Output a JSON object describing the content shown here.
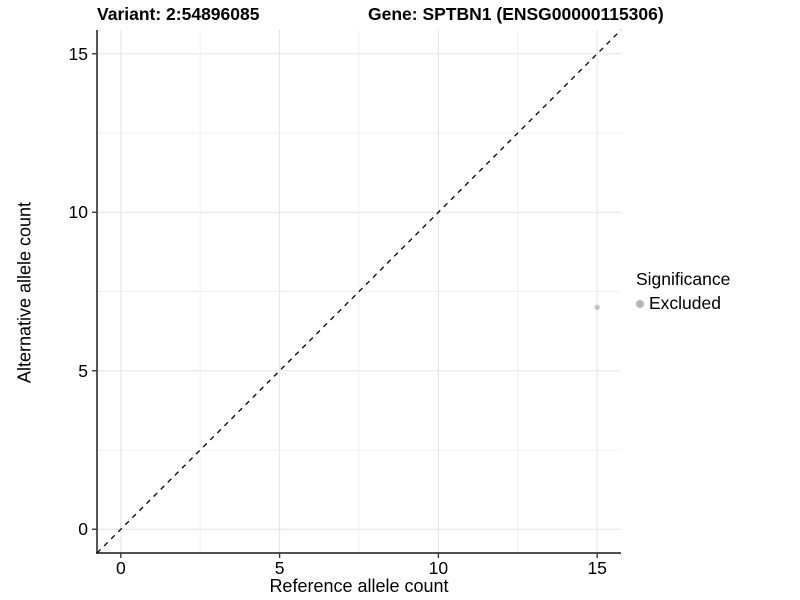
{
  "chart_data": {
    "type": "scatter",
    "titles": {
      "left": "Variant: 2:54896085",
      "right": "Gene: SPTBN1 (ENSG00000115306)"
    },
    "xlabel": "Reference allele count",
    "ylabel": "Alternative allele count",
    "xlim": [
      -0.75,
      15.75
    ],
    "ylim": [
      -0.75,
      15.75
    ],
    "xticks": [
      0,
      5,
      10,
      15
    ],
    "yticks": [
      0,
      5,
      10,
      15
    ],
    "xminor": [
      2.5,
      7.5,
      12.5
    ],
    "yminor": [
      2.5,
      7.5,
      12.5
    ],
    "grid": true,
    "series": [
      {
        "name": "Excluded",
        "color": "#c2c2c2",
        "points": [
          {
            "x": 15,
            "y": 7
          }
        ]
      }
    ],
    "reference_line": {
      "kind": "identity",
      "slope": 1,
      "intercept": 0,
      "style": "dashed",
      "color": "#000000"
    },
    "legend": {
      "title": "Significance",
      "position": "right",
      "items": [
        {
          "label": "Excluded",
          "color": "#b5b5b5"
        }
      ]
    },
    "colors": {
      "background": "#ffffff",
      "axis_line": "#383838",
      "tick_mark": "#383838",
      "grid_major": "#e4e4e4",
      "grid_minor": "#f1f1f1",
      "text": "#000000"
    }
  }
}
